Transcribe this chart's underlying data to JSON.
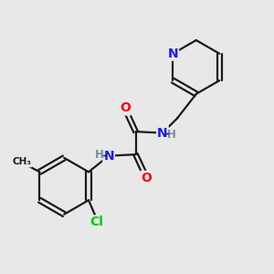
{
  "background_color": "#e8e8e8",
  "bond_color": "#1a1a1a",
  "atom_colors": {
    "N": "#1a1aff",
    "O": "#ff0000",
    "Cl": "#00cc00",
    "C": "#1a1a1a",
    "H": "#7a9090"
  },
  "figsize": [
    3.0,
    3.0
  ],
  "dpi": 100
}
